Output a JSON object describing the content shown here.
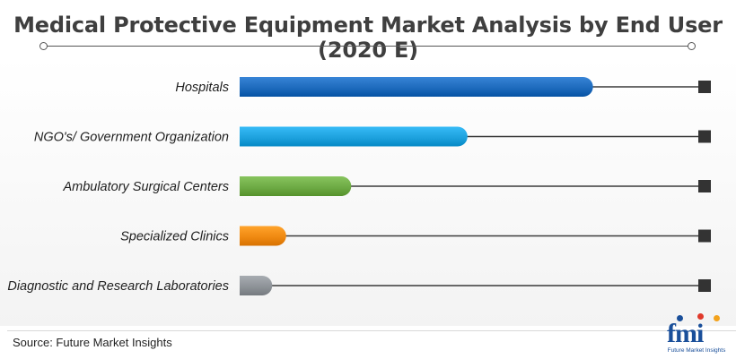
{
  "chart_data": {
    "type": "bar",
    "orientation": "horizontal",
    "title": "Medical Protective Equipment Market Analysis by End User (2020 E)",
    "categories": [
      "Hospitals",
      "NGO's/ Government Organization",
      "Ambulatory Surgical Centers",
      "Specialized Clinics",
      "Diagnostic and Research Laboratories"
    ],
    "values": [
      76,
      49,
      24,
      10,
      7
    ],
    "xlim": [
      0,
      100
    ],
    "colors": [
      "#1e6bbd",
      "#1ea2de",
      "#6eab45",
      "#f08a12",
      "#8e9398"
    ],
    "grid": false,
    "legend": "none"
  },
  "source": "Source: Future Market Insights",
  "logo": {
    "mark": "fmi",
    "tagline": "Future Market Insights"
  }
}
